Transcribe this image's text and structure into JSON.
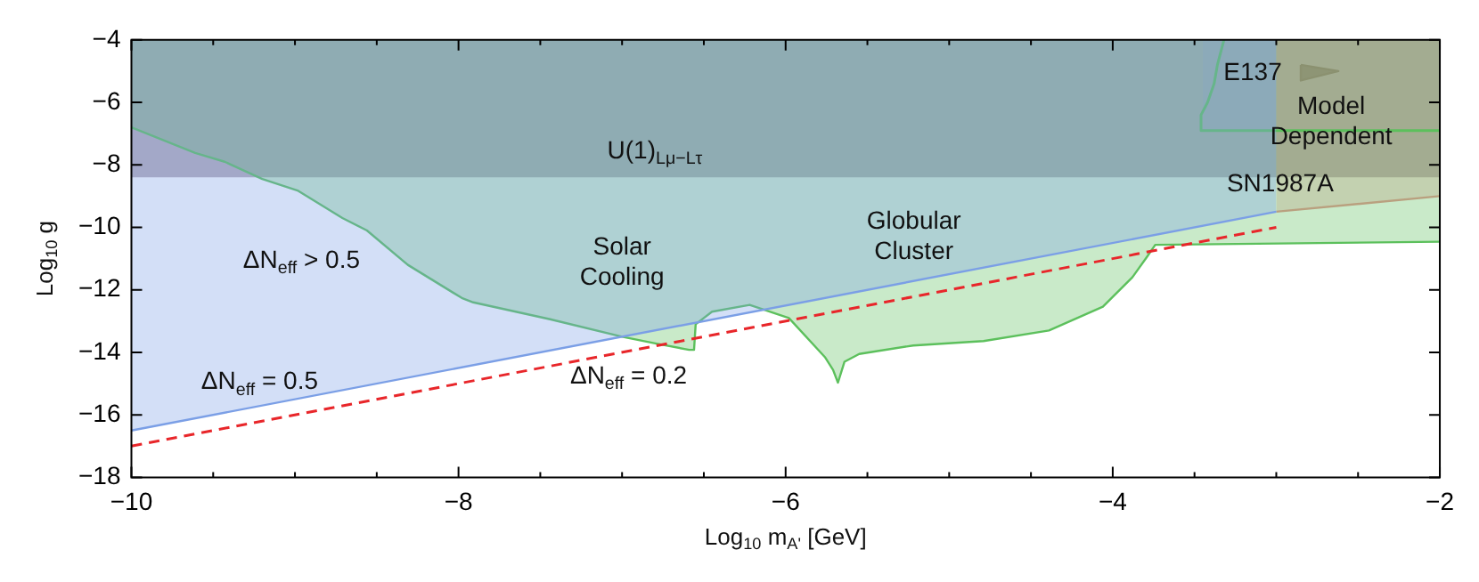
{
  "chart_data": {
    "type": "area",
    "xlabel": "Log$_{10}$ m$_{A'}$ [GeV]",
    "ylabel": "Log$_{10}$ g",
    "xlim": [
      -10,
      -2
    ],
    "ylim": [
      -18,
      -4
    ],
    "xticks": [
      -10,
      {
        "value": -9.5,
        "label": null
      },
      {
        "value": -9,
        "label": null
      },
      {
        "value": -8.5,
        "label": null
      },
      -8,
      {
        "value": -7.5,
        "label": null
      },
      {
        "value": -7,
        "label": null
      },
      {
        "value": -6.5,
        "label": null
      },
      -6,
      {
        "value": -5.5,
        "label": null
      },
      {
        "value": -5,
        "label": null
      },
      {
        "value": -4.5,
        "label": null
      },
      -4,
      {
        "value": -3.5,
        "label": null
      },
      {
        "value": -3,
        "label": null
      },
      {
        "value": -2.5,
        "label": null
      },
      -2
    ],
    "yticks": [
      -18,
      -16,
      -14,
      -12,
      -10,
      -8,
      -6,
      -4
    ],
    "grid": false,
    "legend": false,
    "bands": [
      {
        "axis": "y",
        "from": -8.4,
        "to": -4,
        "color": "#7d6a80"
      }
    ],
    "series": [
      {
        "type": "area",
        "color": "#7b9fe6",
        "x": [
          -10,
          -3
        ],
        "values": [
          -16.5,
          -9.5
        ]
      },
      {
        "type": "line",
        "line_style": "dashed",
        "color": "#e8262a",
        "x": [
          -10,
          -3
        ],
        "values": [
          -17,
          -10
        ]
      },
      {
        "type": "area",
        "color": "#5cc05c",
        "x": [
          -10,
          -9.61,
          -9.43,
          -9.2,
          -8.98,
          -8.71,
          -8.56,
          -8.31,
          -7.98,
          -7.91,
          -7.44,
          -7.0,
          -6.79,
          -6.59,
          -6.56,
          -6.55,
          -6.45,
          -6.22,
          -5.98,
          -5.76,
          -5.71,
          -5.68,
          -5.64,
          -5.55,
          -5.22,
          -4.79,
          -4.39,
          -4.06,
          -3.88,
          -3.79,
          -3.74,
          -2.0
        ],
        "values": [
          -6.8,
          -7.62,
          -7.9,
          -8.45,
          -8.83,
          -9.7,
          -10.1,
          -11.2,
          -12.26,
          -12.4,
          -12.94,
          -13.5,
          -13.72,
          -13.92,
          -13.92,
          -13.1,
          -12.7,
          -12.48,
          -12.9,
          -14.15,
          -14.56,
          -14.97,
          -14.3,
          -14.05,
          -13.78,
          -13.64,
          -13.3,
          -12.54,
          -11.6,
          -10.94,
          -10.56,
          -10.46
        ]
      },
      {
        "type": "line",
        "color": "#5cc05c",
        "x": [
          -2,
          -3.45,
          -3.46,
          -3.42,
          -3.38,
          -3.36,
          -3.33,
          -3.32
        ],
        "values": [
          -6.9,
          -6.9,
          -6.4,
          -6.0,
          -5.4,
          -4.8,
          -4.2,
          -4
        ]
      },
      {
        "type": "area",
        "color": "#a89ee0",
        "x": [
          -3.45,
          -3
        ],
        "values": [
          -6.9,
          -6.9
        ]
      },
      {
        "type": "area",
        "color": "#e89090",
        "x": [
          -3,
          -2
        ],
        "values": [
          -9.5,
          -9.0
        ]
      },
      {
        "type": "area",
        "color": "#807070",
        "x": [
          -2.85,
          -2.62,
          -2.85,
          -2.85
        ],
        "values": [
          -4.8,
          -5.0,
          -5.3,
          -4.8
        ]
      }
    ],
    "annotations": [
      "U(1)$_{Lμ−Lτ}$",
      "ΔN$_{eff}$ > 0.5",
      "Solar\nCooling",
      "Globular\nCluster",
      "ΔN$_{eff}$ = 0.5",
      "ΔN$_{eff}$ = 0.2",
      "E137",
      "Model\nDependent",
      "SN1987A"
    ]
  }
}
